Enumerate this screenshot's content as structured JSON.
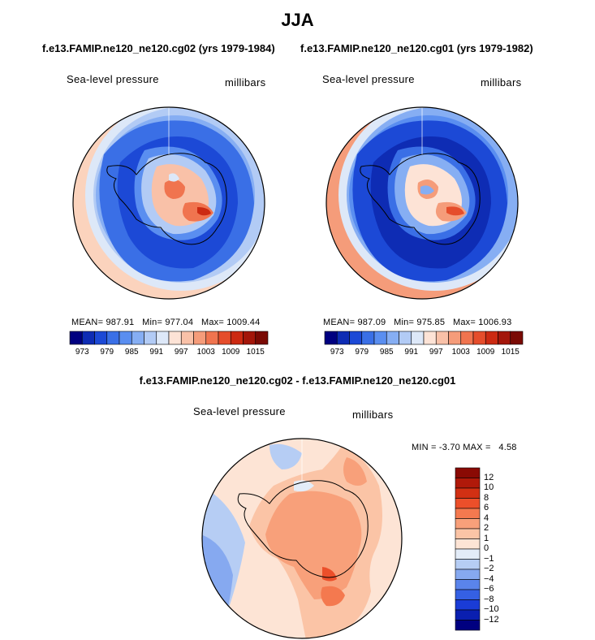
{
  "title": "JJA",
  "panels": [
    {
      "subtitle": "f.e13.FAMIP.ne120_ne120.cg02 (yrs 1979-1984)",
      "field_label": "Sea-level pressure",
      "units_label": "millibars",
      "stats": {
        "mean_label": "MEAN=",
        "mean": "987.91",
        "min_label": "Min=",
        "min": "977.04",
        "max_label": "Max=",
        "max": "1009.44"
      }
    },
    {
      "subtitle": "f.e13.FAMIP.ne120_ne120.cg01 (yrs 1979-1982)",
      "field_label": "Sea-level pressure",
      "units_label": "millibars",
      "stats": {
        "mean_label": "MEAN=",
        "mean": "987.09",
        "min_label": "Min=",
        "min": "975.85",
        "max_label": "Max=",
        "max": "1006.93"
      }
    }
  ],
  "diff_panel": {
    "subtitle": "f.e13.FAMIP.ne120_ne120.cg02 - f.e13.FAMIP.ne120_ne120.cg01",
    "field_label": "Sea-level pressure",
    "units_label": "millibars",
    "stats": {
      "min_label": "MIN =",
      "min": "-3.70",
      "max_label": "MAX =",
      "max": "4.58"
    }
  },
  "colors": {
    "abs_colorbar": [
      "#000080",
      "#0e2cb4",
      "#1c49d6",
      "#3a6fe6",
      "#5a8ef0",
      "#86aef3",
      "#b2cbf5",
      "#dde8f8",
      "#fde3d6",
      "#f9c1a8",
      "#f59c7a",
      "#f0744f",
      "#e54d2b",
      "#cc2a12",
      "#a3160a",
      "#7a0a04"
    ],
    "diff_colorbar": [
      "#000080",
      "#0a1fb0",
      "#1a3cd6",
      "#3560e3",
      "#5a84eb",
      "#86a9f0",
      "#b6cdf4",
      "#e3ecf8",
      "#fde4d5",
      "#fbc4a6",
      "#f8a07a",
      "#f4794f",
      "#ec4f2a",
      "#d23013",
      "#b0190a",
      "#8a0a04"
    ]
  },
  "chart_data": [
    {
      "type": "heatmap",
      "projection": "south-polar-stereographic",
      "title": "Sea-level pressure",
      "units": "millibars",
      "colorbar_ticks": [
        "973",
        "979",
        "985",
        "991",
        "997",
        "1003",
        "1009",
        "1015"
      ],
      "colorbar_levels": [
        970,
        973,
        976,
        979,
        982,
        985,
        988,
        991,
        994,
        997,
        1000,
        1003,
        1006,
        1009,
        1012,
        1015
      ],
      "mean": 987.91,
      "min": 977.04,
      "max": 1009.44,
      "dataset": "f.e13.FAMIP.ne120_ne120.cg02 (yrs 1979-1984)"
    },
    {
      "type": "heatmap",
      "projection": "south-polar-stereographic",
      "title": "Sea-level pressure",
      "units": "millibars",
      "colorbar_ticks": [
        "973",
        "979",
        "985",
        "991",
        "997",
        "1003",
        "1009",
        "1015"
      ],
      "colorbar_levels": [
        970,
        973,
        976,
        979,
        982,
        985,
        988,
        991,
        994,
        997,
        1000,
        1003,
        1006,
        1009,
        1012,
        1015
      ],
      "mean": 987.09,
      "min": 975.85,
      "max": 1006.93,
      "dataset": "f.e13.FAMIP.ne120_ne120.cg01 (yrs 1979-1982)"
    },
    {
      "type": "heatmap",
      "projection": "south-polar-stereographic",
      "title": "Sea-level pressure",
      "units": "millibars",
      "colorbar_ticks": [
        "12",
        "10",
        "8",
        "6",
        "4",
        "2",
        "1",
        "0",
        "-1",
        "-2",
        "-4",
        "-6",
        "-8",
        "-10",
        "-12"
      ],
      "min": -3.7,
      "max": 4.58,
      "dataset": "f.e13.FAMIP.ne120_ne120.cg02 - f.e13.FAMIP.ne120_ne120.cg01"
    }
  ]
}
